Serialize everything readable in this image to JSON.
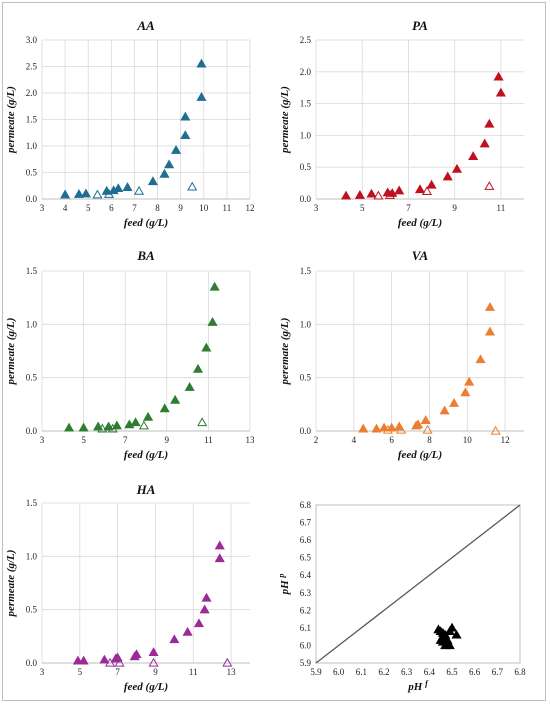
{
  "chart_data": [
    {
      "type": "scatter",
      "title": "AA",
      "xlabel": "feed (g/L)",
      "ylabel": "permeate (g/L)",
      "xlim": [
        3,
        12
      ],
      "ylim": [
        0,
        3.0
      ],
      "xticks": [
        "3",
        "4",
        "5",
        "6",
        "7",
        "8",
        "9",
        "10",
        "11",
        "12"
      ],
      "yticks": [
        "0.0",
        "0.5",
        "1.0",
        "1.5",
        "2.0",
        "2.5",
        "3.0"
      ],
      "color": "#1f6e94",
      "series": [
        {
          "marker": "filled-triangle",
          "points": [
            [
              4.0,
              0.08
            ],
            [
              4.6,
              0.09
            ],
            [
              4.9,
              0.1
            ],
            [
              5.8,
              0.15
            ],
            [
              6.1,
              0.16
            ],
            [
              6.3,
              0.2
            ],
            [
              6.7,
              0.22
            ],
            [
              7.8,
              0.33
            ],
            [
              8.3,
              0.47
            ],
            [
              8.5,
              0.65
            ],
            [
              8.8,
              0.92
            ],
            [
              9.2,
              1.2
            ],
            [
              9.2,
              1.55
            ],
            [
              9.9,
              1.92
            ],
            [
              9.9,
              2.55
            ]
          ]
        },
        {
          "marker": "open-triangle",
          "points": [
            [
              5.4,
              0.08
            ],
            [
              5.9,
              0.09
            ],
            [
              7.2,
              0.15
            ],
            [
              9.5,
              0.23
            ]
          ]
        }
      ]
    },
    {
      "type": "scatter",
      "title": "PA",
      "xlabel": "feed (g/L)",
      "ylabel": "permeate (g/L)",
      "xlim": [
        3,
        12
      ],
      "ylim": [
        0,
        2.5
      ],
      "xticks": [
        "3",
        "5",
        "7",
        "9",
        "11"
      ],
      "yticks": [
        "0.0",
        "0.5",
        "1.0",
        "1.5",
        "2.0",
        "2.5"
      ],
      "color": "#c0111f",
      "series": [
        {
          "marker": "filled-triangle",
          "points": [
            [
              4.3,
              0.05
            ],
            [
              4.9,
              0.06
            ],
            [
              5.4,
              0.08
            ],
            [
              6.1,
              0.1
            ],
            [
              6.3,
              0.09
            ],
            [
              6.6,
              0.13
            ],
            [
              7.5,
              0.15
            ],
            [
              8.0,
              0.22
            ],
            [
              8.7,
              0.35
            ],
            [
              9.1,
              0.47
            ],
            [
              9.8,
              0.67
            ],
            [
              10.3,
              0.87
            ],
            [
              10.5,
              1.18
            ],
            [
              10.9,
              1.92
            ],
            [
              11.0,
              1.67
            ]
          ]
        },
        {
          "marker": "open-triangle",
          "points": [
            [
              5.7,
              0.05
            ],
            [
              6.2,
              0.06
            ],
            [
              7.8,
              0.12
            ],
            [
              10.5,
              0.2
            ]
          ]
        }
      ]
    },
    {
      "type": "scatter",
      "title": "BA",
      "xlabel": "feed (g/L)",
      "ylabel": "permeate (g/L)",
      "xlim": [
        3,
        13
      ],
      "ylim": [
        0,
        1.5
      ],
      "xticks": [
        "3",
        "5",
        "7",
        "9",
        "11",
        "13"
      ],
      "yticks": [
        "0.0",
        "0.5",
        "1.0",
        "1.5"
      ],
      "color": "#2e7d32",
      "series": [
        {
          "marker": "filled-triangle",
          "points": [
            [
              4.3,
              0.03
            ],
            [
              5.0,
              0.03
            ],
            [
              5.7,
              0.04
            ],
            [
              6.2,
              0.04
            ],
            [
              6.6,
              0.05
            ],
            [
              7.2,
              0.06
            ],
            [
              7.5,
              0.08
            ],
            [
              8.1,
              0.13
            ],
            [
              8.9,
              0.21
            ],
            [
              9.4,
              0.29
            ],
            [
              10.1,
              0.41
            ],
            [
              10.5,
              0.58
            ],
            [
              10.9,
              0.78
            ],
            [
              11.2,
              1.02
            ],
            [
              11.3,
              1.35
            ]
          ]
        },
        {
          "marker": "open-triangle",
          "points": [
            [
              5.9,
              0.02
            ],
            [
              6.4,
              0.02
            ],
            [
              7.9,
              0.05
            ],
            [
              10.7,
              0.08
            ]
          ]
        }
      ]
    },
    {
      "type": "scatter",
      "title": "VA",
      "xlabel": "feed (g/L)",
      "ylabel": "peremate (g/L)",
      "xlim": [
        2,
        13
      ],
      "ylim": [
        0,
        1.5
      ],
      "xticks": [
        "2",
        "4",
        "6",
        "8",
        "10",
        "12"
      ],
      "yticks": [
        "0.0",
        "0.5",
        "1.0",
        "1.5"
      ],
      "color": "#ed7d31",
      "series": [
        {
          "marker": "filled-triangle",
          "points": [
            [
              4.5,
              0.02
            ],
            [
              5.2,
              0.02
            ],
            [
              5.6,
              0.03
            ],
            [
              6.0,
              0.03
            ],
            [
              6.4,
              0.04
            ],
            [
              7.3,
              0.05
            ],
            [
              7.4,
              0.06
            ],
            [
              7.8,
              0.1
            ],
            [
              8.8,
              0.19
            ],
            [
              9.3,
              0.26
            ],
            [
              9.9,
              0.36
            ],
            [
              10.1,
              0.46
            ],
            [
              10.7,
              0.67
            ],
            [
              11.2,
              0.93
            ],
            [
              11.2,
              1.16
            ]
          ]
        },
        {
          "marker": "open-triangle",
          "points": [
            [
              5.8,
              0.01
            ],
            [
              6.5,
              0.01
            ],
            [
              7.9,
              0.01
            ],
            [
              11.5,
              0.0
            ]
          ]
        }
      ]
    },
    {
      "type": "scatter",
      "title": "HA",
      "xlabel": "feed (g/L)",
      "ylabel": "permeate (g/L)",
      "xlim": [
        3,
        14
      ],
      "ylim": [
        0,
        1.5
      ],
      "xticks": [
        "3",
        "5",
        "7",
        "9",
        "11",
        "13"
      ],
      "yticks": [
        "0.0",
        "0.5",
        "1.0",
        "1.5"
      ],
      "color": "#9b2b96",
      "series": [
        {
          "marker": "filled-triangle",
          "points": [
            [
              4.9,
              0.02
            ],
            [
              5.2,
              0.02
            ],
            [
              6.3,
              0.03
            ],
            [
              6.9,
              0.04
            ],
            [
              7.0,
              0.05
            ],
            [
              7.9,
              0.06
            ],
            [
              8.0,
              0.08
            ],
            [
              8.9,
              0.1
            ],
            [
              10.0,
              0.22
            ],
            [
              10.7,
              0.29
            ],
            [
              11.3,
              0.37
            ],
            [
              11.6,
              0.5
            ],
            [
              11.7,
              0.61
            ],
            [
              12.4,
              0.98
            ],
            [
              12.4,
              1.1
            ]
          ]
        },
        {
          "marker": "open-triangle",
          "points": [
            [
              6.6,
              0.0
            ],
            [
              7.1,
              0.0
            ],
            [
              8.9,
              0.0
            ],
            [
              12.8,
              0.0
            ]
          ]
        }
      ]
    },
    {
      "type": "scatter",
      "title": "",
      "xlabel": "pH f",
      "ylabel": "pH p",
      "xlim": [
        5.9,
        6.8
      ],
      "ylim": [
        5.9,
        6.8
      ],
      "xticks": [
        "5.9",
        "6.0",
        "6.1",
        "6.2",
        "6.3",
        "6.4",
        "6.5",
        "6.6",
        "6.7",
        "6.8"
      ],
      "yticks": [
        "5.9",
        "6.0",
        "6.1",
        "6.2",
        "6.3",
        "6.4",
        "6.5",
        "6.6",
        "6.7",
        "6.8"
      ],
      "grid": false,
      "reference_line": [
        [
          5.9,
          5.9
        ],
        [
          6.8,
          6.8
        ]
      ],
      "color": "#000000",
      "series": [
        {
          "marker": "filled-triangle",
          "points": [
            [
              6.44,
              6.09
            ],
            [
              6.45,
              6.08
            ],
            [
              6.46,
              6.07
            ],
            [
              6.47,
              6.06
            ],
            [
              6.46,
              6.05
            ],
            [
              6.47,
              6.04
            ],
            [
              6.48,
              6.03
            ],
            [
              6.46,
              6.02
            ],
            [
              6.48,
              6.01
            ],
            [
              6.47,
              6.0
            ],
            [
              6.49,
              6.0
            ],
            [
              6.5,
              6.1
            ],
            [
              6.52,
              6.06
            ],
            [
              6.49,
              6.08
            ],
            [
              6.45,
              6.03
            ]
          ]
        }
      ]
    }
  ]
}
